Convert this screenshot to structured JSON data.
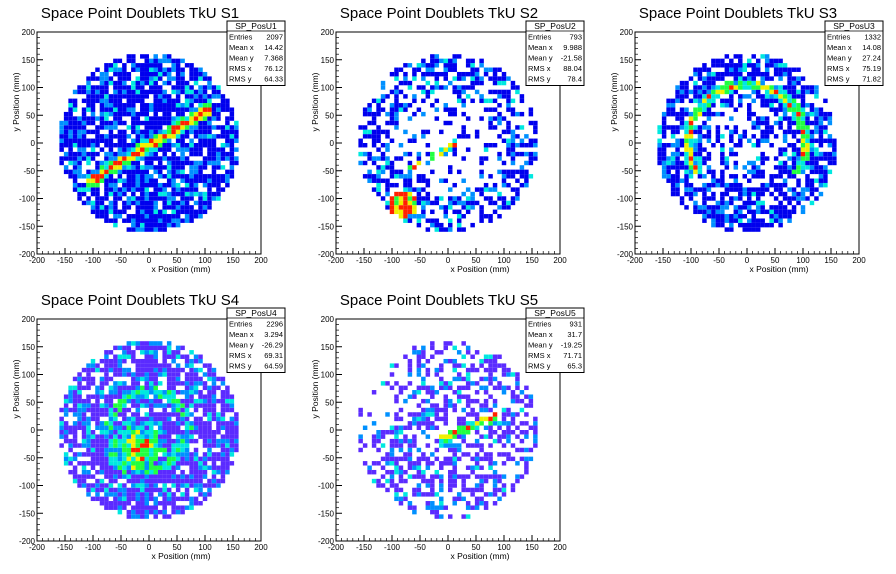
{
  "chart_data": [
    {
      "type": "heatmap",
      "title": "Space Point Doublets TkU S1",
      "xlabel": "x Position (mm)",
      "ylabel": "y Position (mm)",
      "xlim": [
        -200,
        200
      ],
      "ylim": [
        -200,
        200
      ],
      "xticks": [
        -200,
        -150,
        -100,
        -50,
        0,
        50,
        100,
        150,
        200
      ],
      "yticks": [
        -200,
        -150,
        -100,
        -50,
        0,
        50,
        100,
        150,
        200
      ],
      "stats": {
        "name": "SP_PosU1",
        "entries": "2097",
        "mean_x": "14.42",
        "mean_y": "7.368",
        "rms_x": "76.12",
        "rms_y": "64.33"
      },
      "palette": "cool-dense"
    },
    {
      "type": "heatmap",
      "title": "Space Point Doublets TkU S2",
      "xlabel": "x Position (mm)",
      "ylabel": "y Position (mm)",
      "xlim": [
        -200,
        200
      ],
      "ylim": [
        -200,
        200
      ],
      "xticks": [
        -200,
        -150,
        -100,
        -50,
        0,
        50,
        100,
        150,
        200
      ],
      "yticks": [
        -200,
        -150,
        -100,
        -50,
        0,
        50,
        100,
        150,
        200
      ],
      "stats": {
        "name": "SP_PosU2",
        "entries": "793",
        "mean_x": "9.988",
        "mean_y": "-21.58",
        "rms_x": "88.04",
        "rms_y": "78.4"
      },
      "palette": "cool-sparse"
    },
    {
      "type": "heatmap",
      "title": "Space Point Doublets TkU S3",
      "xlabel": "x Position (mm)",
      "ylabel": "y Position (mm)",
      "xlim": [
        -200,
        200
      ],
      "ylim": [
        -200,
        200
      ],
      "xticks": [
        -200,
        -150,
        -100,
        -50,
        0,
        50,
        100,
        150,
        200
      ],
      "yticks": [
        -200,
        -150,
        -100,
        -50,
        0,
        50,
        100,
        150,
        200
      ],
      "stats": {
        "name": "SP_PosU3",
        "entries": "1332",
        "mean_x": "14.08",
        "mean_y": "27.24",
        "rms_x": "75.19",
        "rms_y": "71.82"
      },
      "palette": "cool-medium"
    },
    {
      "type": "heatmap",
      "title": "Space Point Doublets TkU S4",
      "xlabel": "x Position (mm)",
      "ylabel": "y Position (mm)",
      "xlim": [
        -200,
        200
      ],
      "ylim": [
        -200,
        200
      ],
      "xticks": [
        -200,
        -150,
        -100,
        -50,
        0,
        50,
        100,
        150,
        200
      ],
      "yticks": [
        -200,
        -150,
        -100,
        -50,
        0,
        50,
        100,
        150,
        200
      ],
      "stats": {
        "name": "SP_PosU4",
        "entries": "2296",
        "mean_x": "3.294",
        "mean_y": "-26.29",
        "rms_x": "69.31",
        "rms_y": "64.59"
      },
      "palette": "violet-dense"
    },
    {
      "type": "heatmap",
      "title": "Space Point Doublets TkU S5",
      "xlabel": "x Position (mm)",
      "ylabel": "y Position (mm)",
      "xlim": [
        -200,
        200
      ],
      "ylim": [
        -200,
        200
      ],
      "xticks": [
        -200,
        -150,
        -100,
        -50,
        0,
        50,
        100,
        150,
        200
      ],
      "yticks": [
        -200,
        -150,
        -100,
        -50,
        0,
        50,
        100,
        150,
        200
      ],
      "stats": {
        "name": "SP_PosU5",
        "entries": "931",
        "mean_x": "31.7",
        "mean_y": "-19.25",
        "rms_x": "71.71",
        "rms_y": "65.3"
      },
      "palette": "violet-sparse"
    }
  ],
  "stats_labels": {
    "entries": "Entries",
    "mean_x": "Mean x",
    "mean_y": "Mean y",
    "rms_x": "RMS x",
    "rms_y": "RMS y"
  },
  "colors": {
    "low": "#0000ee",
    "low_violet": "#5b2bff",
    "mid1": "#0090ff",
    "mid2": "#00e8e0",
    "mid3": "#20ff40",
    "high1": "#f0f000",
    "high2": "#ff2000"
  }
}
